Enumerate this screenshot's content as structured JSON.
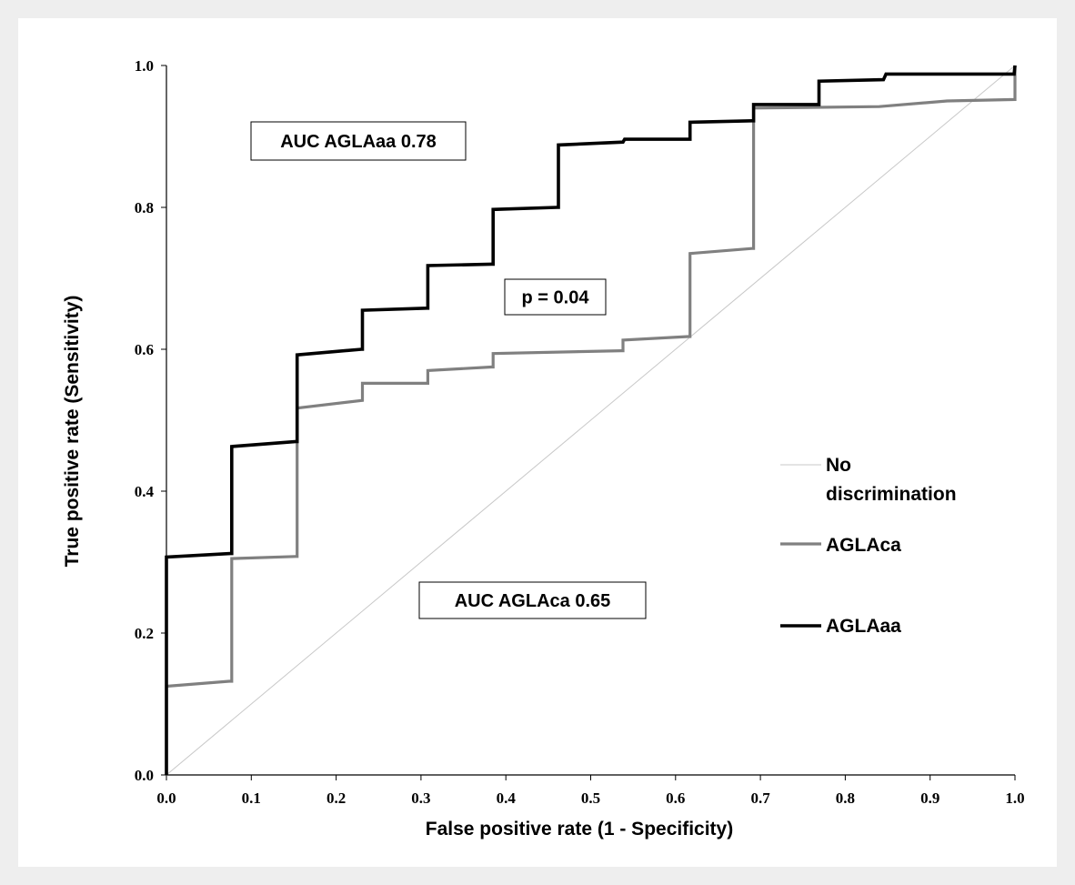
{
  "chart_data": {
    "type": "line",
    "xlabel": "False positive rate (1 - Specificity)",
    "ylabel": "True positive rate (Sensitivity)",
    "xlim": [
      0,
      1
    ],
    "ylim": [
      0,
      1
    ],
    "x_ticks": [
      "0.0",
      "0.1",
      "0.2",
      "0.3",
      "0.4",
      "0.5",
      "0.6",
      "0.7",
      "0.8",
      "0.9",
      "1.0"
    ],
    "y_ticks": [
      "0.0",
      "0.2",
      "0.4",
      "0.6",
      "0.8",
      "1.0"
    ],
    "grid": false,
    "legend_position": "right",
    "series": [
      {
        "name": "No discrimination",
        "color": "#c8c8c8",
        "points": [
          [
            0,
            0
          ],
          [
            1,
            1
          ]
        ]
      },
      {
        "name": "AGLAca",
        "color": "#808080",
        "points": [
          [
            0.0,
            0.0
          ],
          [
            0.0,
            0.125
          ],
          [
            0.074,
            0.132
          ],
          [
            0.077,
            0.132
          ],
          [
            0.077,
            0.305
          ],
          [
            0.152,
            0.308
          ],
          [
            0.154,
            0.308
          ],
          [
            0.154,
            0.517
          ],
          [
            0.231,
            0.528
          ],
          [
            0.231,
            0.552
          ],
          [
            0.306,
            0.552
          ],
          [
            0.308,
            0.552
          ],
          [
            0.308,
            0.57
          ],
          [
            0.383,
            0.575
          ],
          [
            0.385,
            0.575
          ],
          [
            0.385,
            0.594
          ],
          [
            0.536,
            0.598
          ],
          [
            0.538,
            0.598
          ],
          [
            0.538,
            0.613
          ],
          [
            0.615,
            0.618
          ],
          [
            0.617,
            0.618
          ],
          [
            0.617,
            0.735
          ],
          [
            0.69,
            0.742
          ],
          [
            0.692,
            0.742
          ],
          [
            0.692,
            0.94
          ],
          [
            0.84,
            0.942
          ],
          [
            0.92,
            0.95
          ],
          [
            1.0,
            0.952
          ],
          [
            1.0,
            1.0
          ]
        ]
      },
      {
        "name": "AGLAaa",
        "color": "#000000",
        "points": [
          [
            0.0,
            0.0
          ],
          [
            0.0,
            0.307
          ],
          [
            0.075,
            0.312
          ],
          [
            0.077,
            0.312
          ],
          [
            0.077,
            0.463
          ],
          [
            0.153,
            0.47
          ],
          [
            0.154,
            0.47
          ],
          [
            0.154,
            0.592
          ],
          [
            0.23,
            0.6
          ],
          [
            0.231,
            0.6
          ],
          [
            0.231,
            0.655
          ],
          [
            0.307,
            0.658
          ],
          [
            0.308,
            0.658
          ],
          [
            0.308,
            0.718
          ],
          [
            0.383,
            0.72
          ],
          [
            0.385,
            0.72
          ],
          [
            0.385,
            0.797
          ],
          [
            0.46,
            0.8
          ],
          [
            0.462,
            0.8
          ],
          [
            0.462,
            0.888
          ],
          [
            0.538,
            0.892
          ],
          [
            0.54,
            0.896
          ],
          [
            0.615,
            0.896
          ],
          [
            0.617,
            0.896
          ],
          [
            0.617,
            0.92
          ],
          [
            0.69,
            0.922
          ],
          [
            0.692,
            0.922
          ],
          [
            0.692,
            0.945
          ],
          [
            0.767,
            0.945
          ],
          [
            0.769,
            0.945
          ],
          [
            0.769,
            0.978
          ],
          [
            0.845,
            0.98
          ],
          [
            0.848,
            0.988
          ],
          [
            0.999,
            0.988
          ],
          [
            1.0,
            1.0
          ]
        ]
      }
    ],
    "annotations": [
      {
        "id": "auc-aglaaa",
        "text": "AUC AGLAaa 0.78"
      },
      {
        "id": "p-value",
        "text": "p = 0.04"
      },
      {
        "id": "auc-aglaca",
        "text": "AUC AGLAca 0.65"
      }
    ],
    "legend": [
      {
        "series": "No discrimination",
        "lines": [
          "No",
          "discrimination"
        ],
        "color": "#c8c8c8"
      },
      {
        "series": "AGLAca",
        "lines": [
          "AGLAca"
        ],
        "color": "#808080"
      },
      {
        "series": "AGLAaa",
        "lines": [
          "AGLAaa"
        ],
        "color": "#000000"
      }
    ]
  }
}
